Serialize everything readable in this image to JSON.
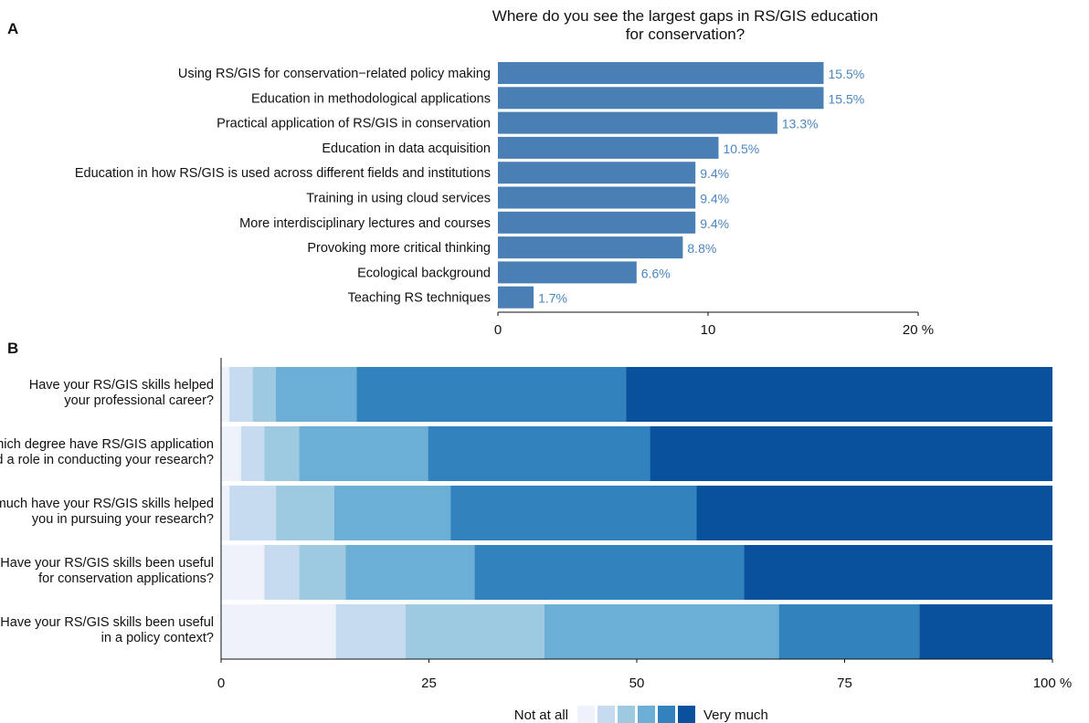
{
  "panels": {
    "a_label": "A",
    "b_label": "B"
  },
  "chart_data": [
    {
      "type": "bar",
      "orientation": "horizontal",
      "title_line1": "Where do you see the largest gaps in RS/GIS education",
      "title_line2": "for conservation?",
      "categories": [
        "Using RS/GIS for conservation−related policy making",
        "Education in methodological applications",
        "Practical application of RS/GIS in conservation",
        "Education in data acquisition",
        "Education in how RS/GIS is used across different fields and institutions",
        "Training in using cloud services",
        "More interdisciplinary lectures and courses",
        "Provoking more critical thinking",
        "Ecological background",
        "Teaching RS techniques"
      ],
      "values": [
        15.5,
        15.5,
        13.3,
        10.5,
        9.4,
        9.4,
        9.4,
        8.8,
        6.6,
        1.7
      ],
      "value_labels": [
        "15.5%",
        "15.5%",
        "13.3%",
        "10.5%",
        "9.4%",
        "9.4%",
        "9.4%",
        "8.8%",
        "6.6%",
        "1.7%"
      ],
      "xlim": [
        0,
        20
      ],
      "xticks": [
        0,
        10,
        20
      ],
      "xtick_labels": [
        "0",
        "10",
        "20 %"
      ],
      "bar_color": "#4a7fb5",
      "label_color": "#4a86c0"
    },
    {
      "type": "bar",
      "orientation": "horizontal",
      "stacked": true,
      "categories": [
        "Have your RS/GIS skills helped\nyour professional career?",
        "To which degree have RS/GIS application\nplayed a role in conducting your research?",
        "How much have your RS/GIS skills helped\nyou in pursuing your research?",
        "Have your RS/GIS skills been useful\nfor conservation applications?",
        "Have your RS/GIS skills been useful\nin a policy context?"
      ],
      "series": [
        {
          "values": [
            1.0,
            2.4,
            1.0,
            5.2,
            13.8
          ]
        },
        {
          "values": [
            2.8,
            2.8,
            5.6,
            4.2,
            8.4
          ]
        },
        {
          "values": [
            2.8,
            4.2,
            7.0,
            5.6,
            16.7
          ]
        },
        {
          "values": [
            9.7,
            15.5,
            14.0,
            15.5,
            28.2
          ]
        },
        {
          "values": [
            32.4,
            26.7,
            29.6,
            32.4,
            16.9
          ]
        },
        {
          "values": [
            51.3,
            48.4,
            42.8,
            37.1,
            16.0
          ]
        }
      ],
      "series_colors": [
        "#eef3fb",
        "#c6dbef",
        "#9ecae1",
        "#6baed6",
        "#3182bd",
        "#08519c"
      ],
      "xlim": [
        0,
        100
      ],
      "xticks": [
        0,
        25,
        50,
        75,
        100
      ],
      "xtick_labels": [
        "0",
        "25",
        "50",
        "75",
        "100 %"
      ],
      "legend": {
        "low_label": "Not at all",
        "high_label": "Very much",
        "position": "bottom"
      }
    }
  ]
}
